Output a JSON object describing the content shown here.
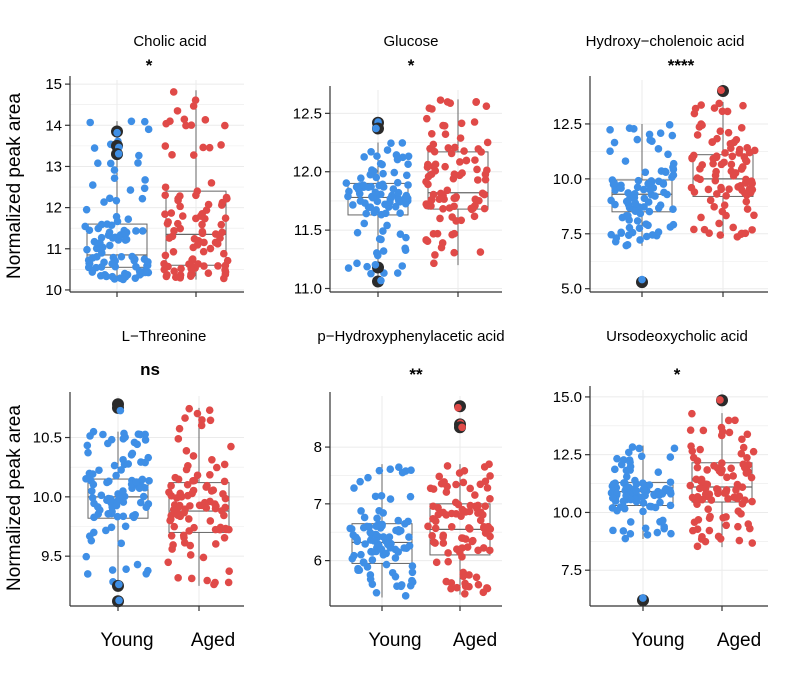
{
  "figure": {
    "ylabel": "Normalized peak area",
    "groups": [
      "Young",
      "Aged"
    ],
    "colors": {
      "Young": "#3f8fe6",
      "Aged": "#e04a48",
      "outlier": "#2b2b2b",
      "box": "#666666",
      "grid": "#ebebeb",
      "axis": "#333333"
    }
  },
  "chart_data": [
    {
      "type": "scatter",
      "title": "Cholic acid",
      "significance": "*",
      "yticks": [
        10,
        11,
        12,
        13,
        14,
        15
      ],
      "ylim": [
        9.95,
        15.1
      ],
      "series": [
        {
          "group": "Young",
          "n": 95,
          "min": 10.25,
          "q1": 10.55,
          "median": 10.85,
          "q3": 11.6,
          "max": 14.1,
          "outliers": [
            13.85,
            13.5,
            13.3
          ]
        },
        {
          "group": "Aged",
          "n": 95,
          "min": 10.25,
          "q1": 10.6,
          "median": 11.35,
          "q3": 12.4,
          "max": 14.85,
          "outliers": []
        }
      ]
    },
    {
      "type": "scatter",
      "title": "Glucose",
      "significance": "*",
      "yticks": [
        11.0,
        11.5,
        12.0,
        12.5
      ],
      "ylim": [
        10.97,
        12.7
      ],
      "series": [
        {
          "group": "Young",
          "n": 95,
          "min": 11.05,
          "q1": 11.63,
          "median": 11.78,
          "q3": 11.9,
          "max": 12.25,
          "outliers": [
            12.42,
            12.37,
            11.18,
            11.06
          ]
        },
        {
          "group": "Aged",
          "n": 95,
          "min": 11.2,
          "q1": 11.68,
          "median": 11.82,
          "q3": 12.17,
          "max": 12.62,
          "outliers": []
        }
      ]
    },
    {
      "type": "scatter",
      "title": "Hydroxy−cholenoic acid",
      "significance": "****",
      "yticks": [
        5.0,
        7.5,
        10.0,
        12.5
      ],
      "ylim": [
        4.85,
        14.5
      ],
      "series": [
        {
          "group": "Young",
          "n": 95,
          "min": 6.95,
          "q1": 8.5,
          "median": 9.3,
          "q3": 9.95,
          "max": 12.5,
          "outliers": [
            5.3
          ]
        },
        {
          "group": "Aged",
          "n": 95,
          "min": 7.3,
          "q1": 9.2,
          "median": 10.0,
          "q3": 11.1,
          "max": 13.5,
          "outliers": [
            14.0
          ]
        }
      ]
    },
    {
      "type": "scatter",
      "title": "L−Threonine",
      "significance": "ns",
      "yticks": [
        9.5,
        10.0,
        10.5
      ],
      "ylim": [
        9.08,
        10.85
      ],
      "series": [
        {
          "group": "Young",
          "n": 95,
          "min": 9.25,
          "q1": 9.82,
          "median": 10.0,
          "q3": 10.15,
          "max": 10.55,
          "outliers": [
            10.78,
            10.75,
            9.25,
            9.12
          ]
        },
        {
          "group": "Aged",
          "n": 95,
          "min": 9.25,
          "q1": 9.7,
          "median": 9.88,
          "q3": 10.12,
          "max": 10.75,
          "outliers": []
        }
      ]
    },
    {
      "type": "scatter",
      "title": "p−Hydroxyphenylacetic acid",
      "significance": "**",
      "yticks": [
        6,
        7,
        8
      ],
      "ylim": [
        5.2,
        8.9
      ],
      "series": [
        {
          "group": "Young",
          "n": 95,
          "min": 5.35,
          "q1": 5.95,
          "median": 6.32,
          "q3": 6.65,
          "max": 7.7,
          "outliers": []
        },
        {
          "group": "Aged",
          "n": 95,
          "min": 5.4,
          "q1": 6.1,
          "median": 6.55,
          "q3": 7.0,
          "max": 7.7,
          "outliers": [
            8.72,
            8.4,
            8.35
          ]
        }
      ]
    },
    {
      "type": "scatter",
      "title": "Ursodeoxycholic acid",
      "significance": "*",
      "yticks": [
        7.5,
        10.0,
        12.5,
        15.0
      ],
      "ylim": [
        5.95,
        15.3
      ],
      "series": [
        {
          "group": "Young",
          "n": 95,
          "min": 8.85,
          "q1": 10.3,
          "median": 10.9,
          "q3": 11.3,
          "max": 12.9,
          "outliers": [
            6.2
          ]
        },
        {
          "group": "Aged",
          "n": 95,
          "min": 8.5,
          "q1": 10.45,
          "median": 11.1,
          "q3": 12.15,
          "max": 14.3,
          "outliers": [
            14.85
          ]
        }
      ]
    }
  ]
}
